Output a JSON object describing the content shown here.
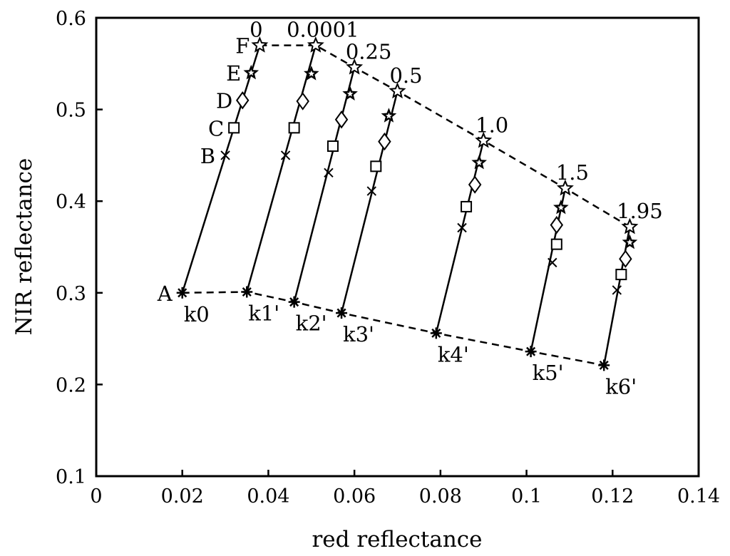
{
  "chart_data": {
    "type": "scatter",
    "title": "",
    "xlabel": "red reflectance",
    "ylabel": "NIR reflectance",
    "xlim": [
      0,
      0.14
    ],
    "ylim": [
      0.1,
      0.6
    ],
    "xticks": [
      0,
      0.02,
      0.04,
      0.06,
      0.08,
      0.1,
      0.12,
      0.14
    ],
    "yticks": [
      0.1,
      0.2,
      0.3,
      0.4,
      0.5,
      0.6
    ],
    "xtick_labels": [
      "0",
      "0.02",
      "0.04",
      "0.06",
      "0.08",
      "0.1",
      "0.12",
      "0.14"
    ],
    "ytick_labels": [
      "0.1",
      "0.2",
      "0.3",
      "0.4",
      "0.5",
      "0.6"
    ],
    "grid": false,
    "point_labels": [
      "A",
      "B",
      "C",
      "D",
      "E",
      "F"
    ],
    "markers": [
      "asterisk",
      "cross",
      "square",
      "diamond",
      "star-filled",
      "star-open"
    ],
    "lines": [
      {
        "top_label": "0",
        "bottom_label": "k0",
        "points": [
          [
            0.02,
            0.3
          ],
          [
            0.03,
            0.45
          ],
          [
            0.032,
            0.48
          ],
          [
            0.034,
            0.51
          ],
          [
            0.036,
            0.54
          ],
          [
            0.038,
            0.57
          ]
        ]
      },
      {
        "top_label": "0.0001",
        "bottom_label": "k1'",
        "points": [
          [
            0.035,
            0.301
          ],
          [
            0.044,
            0.45
          ],
          [
            0.046,
            0.48
          ],
          [
            0.048,
            0.509
          ],
          [
            0.05,
            0.539
          ],
          [
            0.051,
            0.57
          ]
        ]
      },
      {
        "top_label": "0.25",
        "bottom_label": "k2'",
        "points": [
          [
            0.046,
            0.29
          ],
          [
            0.054,
            0.431
          ],
          [
            0.055,
            0.46
          ],
          [
            0.057,
            0.489
          ],
          [
            0.059,
            0.517
          ],
          [
            0.06,
            0.546
          ]
        ]
      },
      {
        "top_label": "0.5",
        "bottom_label": "k3'",
        "points": [
          [
            0.057,
            0.278
          ],
          [
            0.064,
            0.411
          ],
          [
            0.065,
            0.438
          ],
          [
            0.067,
            0.465
          ],
          [
            0.068,
            0.493
          ],
          [
            0.07,
            0.52
          ]
        ]
      },
      {
        "top_label": "1.0",
        "bottom_label": "k4'",
        "points": [
          [
            0.079,
            0.256
          ],
          [
            0.085,
            0.371
          ],
          [
            0.086,
            0.394
          ],
          [
            0.088,
            0.418
          ],
          [
            0.089,
            0.442
          ],
          [
            0.09,
            0.466
          ]
        ]
      },
      {
        "top_label": "1.5",
        "bottom_label": "k5'",
        "points": [
          [
            0.101,
            0.236
          ],
          [
            0.106,
            0.333
          ],
          [
            0.107,
            0.353
          ],
          [
            0.107,
            0.374
          ],
          [
            0.108,
            0.393
          ],
          [
            0.109,
            0.414
          ]
        ]
      },
      {
        "top_label": "1.95",
        "bottom_label": "k6'",
        "points": [
          [
            0.118,
            0.221
          ],
          [
            0.121,
            0.303
          ],
          [
            0.122,
            0.32
          ],
          [
            0.123,
            0.337
          ],
          [
            0.124,
            0.355
          ],
          [
            0.124,
            0.372
          ]
        ]
      }
    ],
    "dashed_lines": [
      "top-end-points",
      "bottom-start-points"
    ]
  }
}
